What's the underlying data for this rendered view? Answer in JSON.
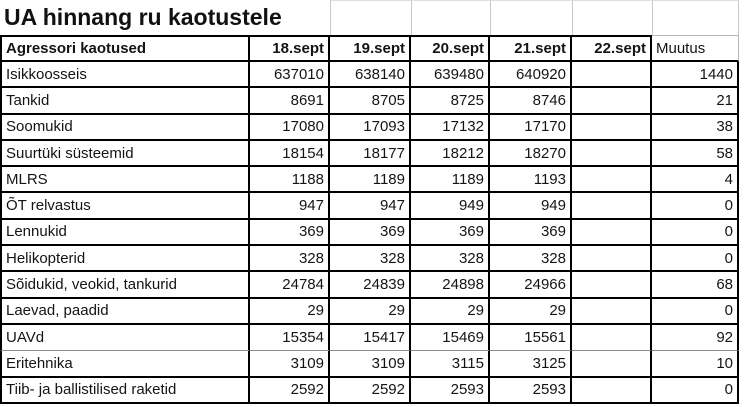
{
  "title": "UA hinnang ru kaotustele",
  "table": {
    "header": {
      "label_col": "Agressori kaotused",
      "date_cols": [
        "18.sept",
        "19.sept",
        "20.sept",
        "21.sept",
        "22.sept"
      ],
      "change_col": "Muutus"
    },
    "rows": [
      {
        "label": "Isikkoosseis",
        "values": [
          "637010",
          "638140",
          "639480",
          "640920",
          "",
          "1440"
        ]
      },
      {
        "label": "Tankid",
        "values": [
          "8691",
          "8705",
          "8725",
          "8746",
          "",
          "21"
        ]
      },
      {
        "label": "Soomukid",
        "values": [
          "17080",
          "17093",
          "17132",
          "17170",
          "",
          "38"
        ]
      },
      {
        "label": "Suurtüki süsteemid",
        "values": [
          "18154",
          "18177",
          "18212",
          "18270",
          "",
          "58"
        ]
      },
      {
        "label": "MLRS",
        "values": [
          "1188",
          "1189",
          "1189",
          "1193",
          "",
          "4"
        ]
      },
      {
        "label": "ÕT relvastus",
        "values": [
          "947",
          "947",
          "949",
          "949",
          "",
          "0"
        ]
      },
      {
        "label": "Lennukid",
        "values": [
          "369",
          "369",
          "369",
          "369",
          "",
          "0"
        ]
      },
      {
        "label": "Helikopterid",
        "values": [
          "328",
          "328",
          "328",
          "328",
          "",
          "0"
        ]
      },
      {
        "label": "Sõidukid, veokid, tankurid",
        "values": [
          "24784",
          "24839",
          "24898",
          "24966",
          "",
          "68"
        ]
      },
      {
        "label": "Laevad, paadid",
        "values": [
          "29",
          "29",
          "29",
          "29",
          "",
          "0"
        ]
      },
      {
        "label": "UAVd",
        "values": [
          "15354",
          "15417",
          "15469",
          "15561",
          "",
          "92"
        ],
        "bottom_border": "light"
      },
      {
        "label": "Eritehnika",
        "values": [
          "3109",
          "3109",
          "3115",
          "3125",
          "",
          "10"
        ]
      },
      {
        "label": "Tiib- ja ballistilised raketid",
        "values": [
          "2592",
          "2592",
          "2593",
          "2593",
          "",
          "0"
        ]
      }
    ]
  },
  "colors": {
    "border": "#000000",
    "gridline": "#c9c9c9",
    "light_divider": "#8a8a8a",
    "text": "#141414",
    "background": "#ffffff"
  }
}
